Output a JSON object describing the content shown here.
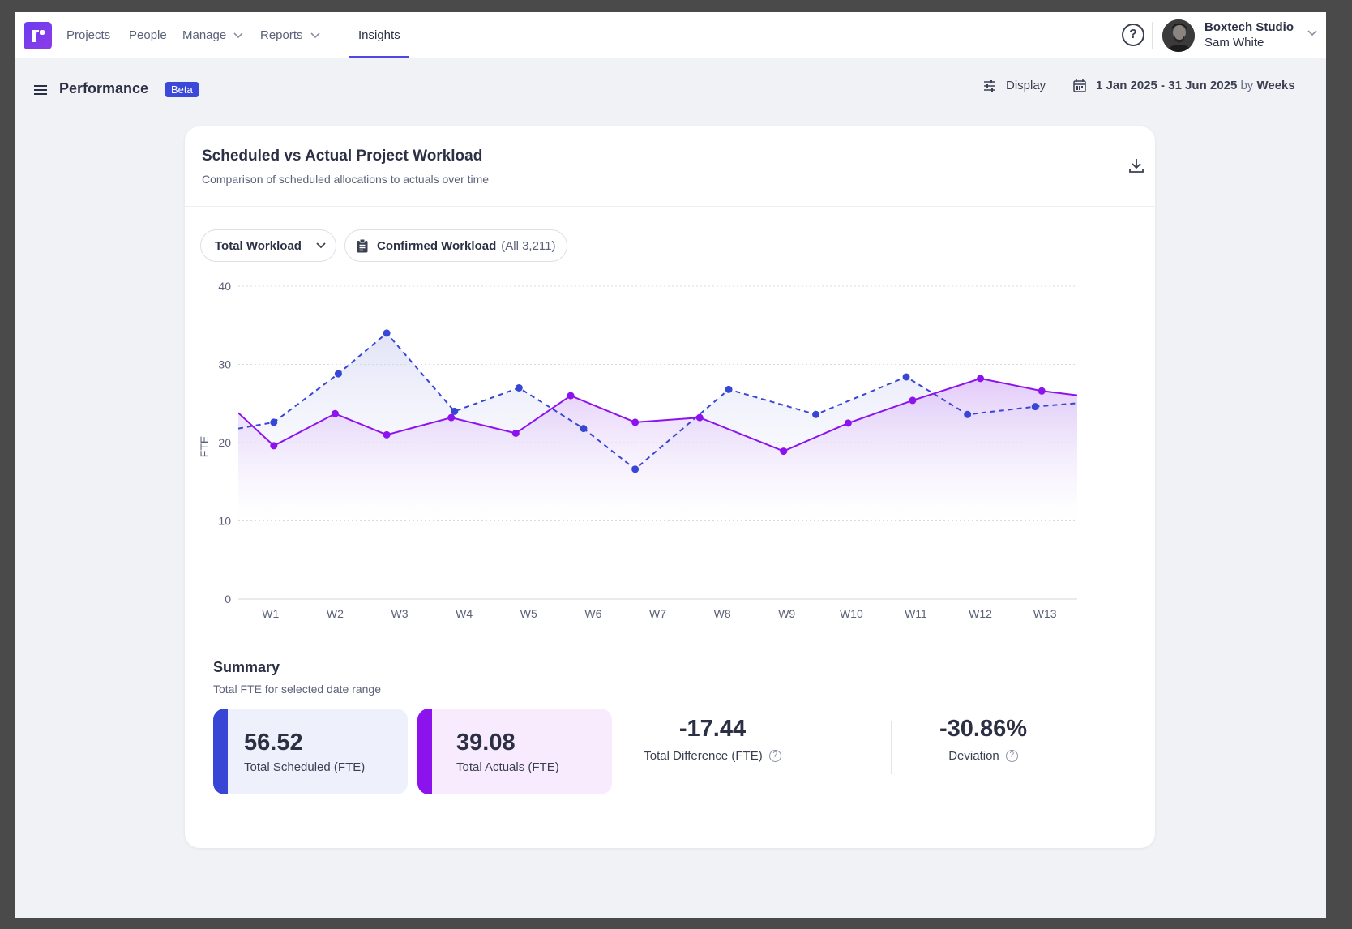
{
  "nav": {
    "items": [
      {
        "label": "Projects",
        "dropdown": false
      },
      {
        "label": "People",
        "dropdown": false
      },
      {
        "label": "Manage",
        "dropdown": true
      },
      {
        "label": "Reports",
        "dropdown": true
      },
      {
        "label": "Insights",
        "dropdown": false,
        "active": true
      }
    ],
    "help_icon": "question-circle-icon",
    "org_name": "Boxtech Studio",
    "user_name": "Sam White"
  },
  "page": {
    "title": "Performance",
    "badge": "Beta",
    "display_label": "Display",
    "date_range": "1 Jan 2025 - 31 Jun 2025",
    "by_label": "by",
    "granularity": "Weeks"
  },
  "card": {
    "title": "Scheduled vs Actual Project Workload",
    "subtitle": "Comparison of scheduled allocations to actuals over time",
    "workload_select": "Total Workload",
    "confirmed_label": "Confirmed Workload",
    "confirmed_count": "(All 3,211)"
  },
  "chart_data": {
    "type": "line",
    "ylabel": "FTE",
    "xlabel": "",
    "ylim": [
      0,
      40
    ],
    "yticks": [
      0,
      10,
      20,
      30,
      40
    ],
    "categories": [
      "W1",
      "W2",
      "W3",
      "W4",
      "W5",
      "W6",
      "W7",
      "W8",
      "W9",
      "W10",
      "W11",
      "W12",
      "W13"
    ],
    "grid": true,
    "series": [
      {
        "style": "dashed",
        "color": "#3846d6",
        "x": [
          0,
          0.55,
          1.55,
          2.3,
          3.35,
          4.35,
          5.35,
          6.15,
          7.6,
          8.95,
          10.35,
          11.3,
          12.35,
          13.25
        ],
        "values": [
          21.8,
          22.6,
          28.8,
          34.0,
          24.0,
          27.0,
          21.8,
          16.6,
          26.8,
          23.6,
          28.4,
          23.6,
          24.6,
          25.2
        ]
      },
      {
        "style": "solid",
        "color": "#8c12ee",
        "x": [
          0,
          0.55,
          1.5,
          2.3,
          3.3,
          4.3,
          5.15,
          6.15,
          7.15,
          8.45,
          9.45,
          10.45,
          11.5,
          12.45,
          13.25
        ],
        "values": [
          23.8,
          19.6,
          23.7,
          21.0,
          23.2,
          21.2,
          26.0,
          22.6,
          23.2,
          18.9,
          22.5,
          25.4,
          28.2,
          26.6,
          25.8
        ]
      }
    ]
  },
  "summary": {
    "title": "Summary",
    "subtitle": "Total FTE for selected date range",
    "scheduled_value": "56.52",
    "scheduled_label": "Total Scheduled (FTE)",
    "actuals_value": "39.08",
    "actuals_label": "Total Actuals (FTE)",
    "difference_value": "-17.44",
    "difference_label": "Total Difference (FTE)",
    "deviation_value": "-30.86%",
    "deviation_label": "Deviation"
  }
}
